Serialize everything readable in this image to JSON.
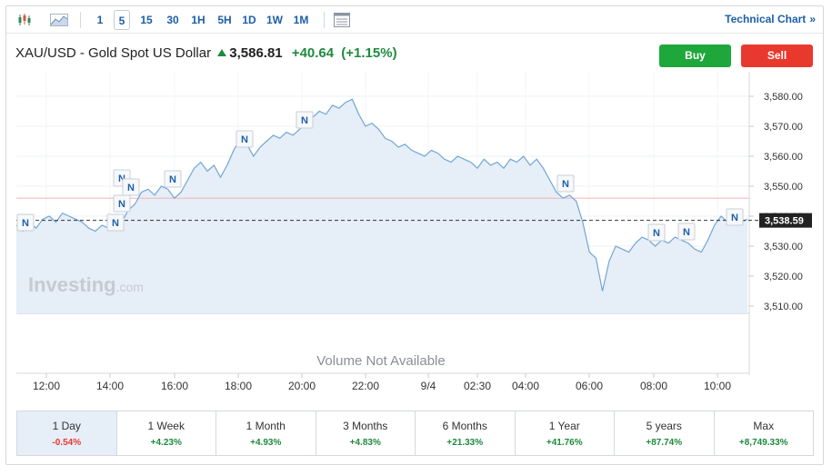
{
  "toolbar": {
    "candles_icon": "candlestick-icon",
    "area_icon": "area-chart-icon",
    "periods": [
      "1",
      "5",
      "15",
      "30",
      "1H",
      "5H",
      "1D",
      "1W",
      "1M"
    ],
    "active_period": "5",
    "calendar_icon": "calendar-icon",
    "technical_chart": "Technical Chart",
    "technical_chevron": "»"
  },
  "header": {
    "symbol": "XAU/USD - Gold Spot US Dollar",
    "price": "3,586.81",
    "change": "+40.64",
    "change_pct": "(+1.15%)",
    "buy_label": "Buy",
    "sell_label": "Sell"
  },
  "colors": {
    "up": "#1e8a3e",
    "down": "#e9392e",
    "line": "#6fa6d6",
    "fill": "#e6eef8",
    "link": "#1c5fa8"
  },
  "chart": {
    "watermark_brand": "Investing",
    "watermark_suffix": ".com",
    "volume_text": "Volume Not Available",
    "current_label": "3,538.59",
    "news_marker_label": "N"
  },
  "chart_data": {
    "type": "area",
    "title": "",
    "xlabel": "",
    "ylabel": "",
    "ylim": [
      3507,
      3588
    ],
    "y_ticks": [
      3510,
      3520,
      3530,
      3540,
      3550,
      3560,
      3570,
      3580
    ],
    "y_tick_labels": [
      "3,510.00",
      "3,520.00",
      "3,530.00",
      "3,540.00",
      "3,550.00",
      "3,560.00",
      "3,570.00",
      "3,580.00"
    ],
    "x_ticks": [
      "12:00",
      "14:00",
      "16:00",
      "18:00",
      "20:00",
      "22:00",
      "9/4",
      "02:30",
      "04:00",
      "06:00",
      "08:00",
      "10:00"
    ],
    "reference_level": 3546,
    "current_value": 3538.59,
    "series": [
      {
        "values": [
          3537,
          3535,
          3538,
          3536,
          3539,
          3540,
          3538,
          3541,
          3540,
          3539,
          3538,
          3536,
          3535,
          3537,
          3536,
          3539,
          3538,
          3542,
          3544,
          3548,
          3549,
          3547,
          3550,
          3549,
          3546,
          3548,
          3552,
          3556,
          3558,
          3555,
          3557,
          3553,
          3557,
          3562,
          3566,
          3564,
          3560,
          3563,
          3565,
          3567,
          3566,
          3568,
          3567,
          3569,
          3571,
          3573,
          3575,
          3574,
          3577,
          3576,
          3578,
          3579,
          3574,
          3570,
          3571,
          3569,
          3566,
          3565,
          3563,
          3564,
          3562,
          3561,
          3560,
          3562,
          3561,
          3559,
          3558,
          3560,
          3559,
          3558,
          3556,
          3559,
          3557,
          3558,
          3556,
          3559,
          3558,
          3560,
          3557,
          3559,
          3556,
          3552,
          3548,
          3546,
          3547,
          3545,
          3538,
          3528,
          3526,
          3515,
          3525,
          3530,
          3529,
          3528,
          3531,
          3533,
          3532,
          3530,
          3532,
          3531,
          3533,
          3532,
          3531,
          3529,
          3528,
          3532,
          3537,
          3540,
          3538,
          3539,
          3538,
          3539
        ]
      }
    ]
  },
  "ranges": [
    {
      "label": "1 Day",
      "value": "-0.54%",
      "dir": "neg",
      "active": true
    },
    {
      "label": "1 Week",
      "value": "+4.23%",
      "dir": "pos",
      "active": false
    },
    {
      "label": "1 Month",
      "value": "+4.93%",
      "dir": "pos",
      "active": false
    },
    {
      "label": "3 Months",
      "value": "+4.83%",
      "dir": "pos",
      "active": false
    },
    {
      "label": "6 Months",
      "value": "+21.33%",
      "dir": "pos",
      "active": false
    },
    {
      "label": "1 Year",
      "value": "+41.76%",
      "dir": "pos",
      "active": false
    },
    {
      "label": "5 years",
      "value": "+87.74%",
      "dir": "pos",
      "active": false
    },
    {
      "label": "Max",
      "value": "+8,749.33%",
      "dir": "pos",
      "active": false
    }
  ]
}
